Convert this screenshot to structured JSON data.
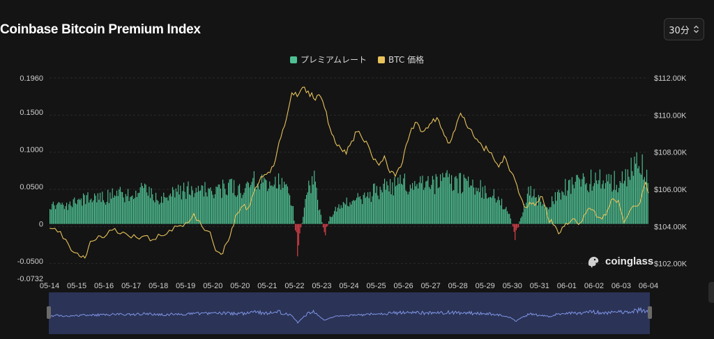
{
  "title": "Coinbase Bitcoin Premium Index",
  "interval": {
    "label": "30分",
    "icon": "updown-chevron-icon"
  },
  "legend": [
    {
      "label": "プレミアムレート",
      "color": "#4fc093"
    },
    {
      "label": "BTC 価格",
      "color": "#e8c35b"
    }
  ],
  "logo": {
    "text": "coinglass",
    "icon": "coinglass-logo-icon"
  },
  "colors": {
    "positive": "#4fc093",
    "negative": "#e8414e",
    "price": "#e8c35b",
    "navigator": "#7f95e6"
  },
  "chart_data": {
    "type": "bar",
    "title": "Coinbase Bitcoin Premium Index",
    "x_labels": [
      "05-14",
      "05-15",
      "05-16",
      "05-17",
      "05-18",
      "05-19",
      "05-20",
      "05-20",
      "05-21",
      "05-22",
      "05-23",
      "05-24",
      "05-25",
      "05-26",
      "05-27",
      "05-28",
      "05-29",
      "05-30",
      "05-31",
      "06-01",
      "06-02",
      "06-03",
      "06-04"
    ],
    "y_left_ticks": [
      "0.1960",
      "0.1500",
      "0.1000",
      "0.0500",
      "0",
      "-0.0500",
      "-0.0732"
    ],
    "y_left_range": [
      -0.0732,
      0.196
    ],
    "y_right_ticks": [
      "$112.00K",
      "$110.00K",
      "$108.00K",
      "$106.00K",
      "$104.00K",
      "$102.00K"
    ],
    "y_right_range": [
      101200,
      112000
    ],
    "grid": true,
    "legend_position": "top-center",
    "series": [
      {
        "name": "プレミアムレート",
        "kind": "bar",
        "axis": "left",
        "points": [
          [
            0,
            0.02
          ],
          [
            0.3,
            0.03
          ],
          [
            0.6,
            0.025
          ],
          [
            1,
            0.03
          ],
          [
            1.5,
            0.035
          ],
          [
            2,
            0.035
          ],
          [
            2.5,
            0.04
          ],
          [
            3,
            0.04
          ],
          [
            3.5,
            0.045
          ],
          [
            4,
            0.035
          ],
          [
            4.5,
            0.04
          ],
          [
            5,
            0.045
          ],
          [
            5.5,
            0.05
          ],
          [
            6,
            0.045
          ],
          [
            6.5,
            0.05
          ],
          [
            7,
            0.045
          ],
          [
            7.5,
            0.06
          ],
          [
            8,
            0.05
          ],
          [
            8.3,
            0.065
          ],
          [
            8.6,
            0.05
          ],
          [
            8.9,
            0.03
          ],
          [
            9.1,
            -0.035
          ],
          [
            9.3,
            0.01
          ],
          [
            9.5,
            0.05
          ],
          [
            9.7,
            0.06
          ],
          [
            9.9,
            0.02
          ],
          [
            10.1,
            -0.015
          ],
          [
            10.3,
            0.01
          ],
          [
            10.5,
            0.02
          ],
          [
            11,
            0.03
          ],
          [
            11.5,
            0.035
          ],
          [
            12,
            0.045
          ],
          [
            12.5,
            0.05
          ],
          [
            13,
            0.055
          ],
          [
            13.5,
            0.055
          ],
          [
            14,
            0.05
          ],
          [
            14.5,
            0.06
          ],
          [
            15,
            0.055
          ],
          [
            15.5,
            0.05
          ],
          [
            16,
            0.045
          ],
          [
            16.5,
            0.035
          ],
          [
            16.9,
            0.01
          ],
          [
            17.1,
            -0.02
          ],
          [
            17.3,
            0.01
          ],
          [
            17.6,
            0.045
          ],
          [
            18,
            0.03
          ],
          [
            18.3,
            0.02
          ],
          [
            18.6,
            0.04
          ],
          [
            19,
            0.05
          ],
          [
            19.5,
            0.055
          ],
          [
            20,
            0.06
          ],
          [
            20.5,
            0.055
          ],
          [
            21,
            0.06
          ],
          [
            21.4,
            0.075
          ],
          [
            21.7,
            0.08
          ],
          [
            22,
            0.055
          ]
        ]
      },
      {
        "name": "BTC 価格",
        "kind": "line",
        "axis": "right",
        "points": [
          [
            0,
            103900
          ],
          [
            0.3,
            103700
          ],
          [
            0.6,
            103300
          ],
          [
            0.9,
            102600
          ],
          [
            1.1,
            102400
          ],
          [
            1.3,
            102300
          ],
          [
            1.5,
            103200
          ],
          [
            1.8,
            103500
          ],
          [
            2,
            103400
          ],
          [
            2.3,
            103800
          ],
          [
            2.6,
            103600
          ],
          [
            2.9,
            103500
          ],
          [
            3.2,
            103400
          ],
          [
            3.5,
            103500
          ],
          [
            3.8,
            103300
          ],
          [
            4.1,
            103500
          ],
          [
            4.4,
            103800
          ],
          [
            4.7,
            104000
          ],
          [
            5,
            104200
          ],
          [
            5.3,
            104700
          ],
          [
            5.6,
            104000
          ],
          [
            5.9,
            103700
          ],
          [
            6.1,
            102700
          ],
          [
            6.3,
            102500
          ],
          [
            6.5,
            103100
          ],
          [
            6.7,
            103900
          ],
          [
            6.9,
            104700
          ],
          [
            7.1,
            105100
          ],
          [
            7.3,
            105000
          ],
          [
            7.5,
            105800
          ],
          [
            7.7,
            106400
          ],
          [
            7.9,
            106800
          ],
          [
            8.1,
            106900
          ],
          [
            8.3,
            107600
          ],
          [
            8.5,
            108800
          ],
          [
            8.7,
            109800
          ],
          [
            8.9,
            111200
          ],
          [
            9.1,
            111000
          ],
          [
            9.3,
            111500
          ],
          [
            9.5,
            111300
          ],
          [
            9.7,
            110900
          ],
          [
            9.9,
            111100
          ],
          [
            10.1,
            110400
          ],
          [
            10.3,
            109300
          ],
          [
            10.5,
            108500
          ],
          [
            10.7,
            108200
          ],
          [
            10.9,
            107900
          ],
          [
            11.1,
            108600
          ],
          [
            11.3,
            109100
          ],
          [
            11.5,
            108700
          ],
          [
            11.7,
            108400
          ],
          [
            11.9,
            107600
          ],
          [
            12.1,
            107300
          ],
          [
            12.3,
            107800
          ],
          [
            12.5,
            106900
          ],
          [
            12.7,
            106700
          ],
          [
            12.9,
            107200
          ],
          [
            13.1,
            108400
          ],
          [
            13.3,
            109300
          ],
          [
            13.5,
            109600
          ],
          [
            13.7,
            109100
          ],
          [
            13.9,
            109300
          ],
          [
            14.1,
            109800
          ],
          [
            14.3,
            109700
          ],
          [
            14.5,
            108900
          ],
          [
            14.7,
            108500
          ],
          [
            14.9,
            109200
          ],
          [
            15.1,
            110100
          ],
          [
            15.3,
            109500
          ],
          [
            15.5,
            109200
          ],
          [
            15.7,
            108700
          ],
          [
            15.9,
            108300
          ],
          [
            16.1,
            108100
          ],
          [
            16.3,
            107700
          ],
          [
            16.5,
            107200
          ],
          [
            16.7,
            107800
          ],
          [
            16.9,
            107000
          ],
          [
            17.1,
            106500
          ],
          [
            17.3,
            105600
          ],
          [
            17.5,
            105000
          ],
          [
            17.7,
            105200
          ],
          [
            17.9,
            105300
          ],
          [
            18.1,
            105600
          ],
          [
            18.3,
            104500
          ],
          [
            18.5,
            104100
          ],
          [
            18.7,
            103600
          ],
          [
            18.9,
            104000
          ],
          [
            19.1,
            104200
          ],
          [
            19.3,
            104400
          ],
          [
            19.5,
            104200
          ],
          [
            19.7,
            104700
          ],
          [
            19.9,
            104900
          ],
          [
            20.1,
            104500
          ],
          [
            20.3,
            104400
          ],
          [
            20.5,
            104900
          ],
          [
            20.7,
            105500
          ],
          [
            20.9,
            105400
          ],
          [
            21.1,
            104200
          ],
          [
            21.3,
            104800
          ],
          [
            21.5,
            105100
          ],
          [
            21.7,
            105300
          ],
          [
            21.9,
            106400
          ],
          [
            22,
            105800
          ]
        ]
      }
    ]
  }
}
